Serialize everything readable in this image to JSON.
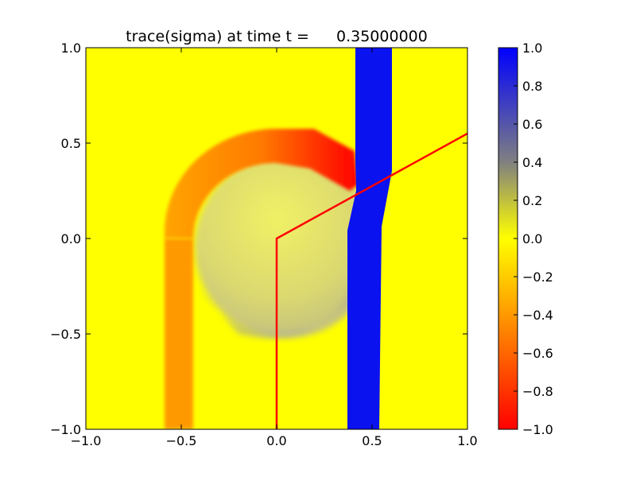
{
  "chart_data": {
    "type": "heatmap",
    "title": "trace(sigma) at time t =",
    "time_value": "0.35000000",
    "xlim": [
      -1.0,
      1.0
    ],
    "ylim": [
      -1.0,
      1.0
    ],
    "x_ticks": [
      -1.0,
      -0.5,
      0.0,
      0.5,
      1.0
    ],
    "x_tick_labels": [
      "−1.0",
      "−0.5",
      "0.0",
      "0.5",
      "1.0"
    ],
    "y_ticks": [
      -1.0,
      -0.5,
      0.0,
      0.5,
      1.0
    ],
    "y_tick_labels": [
      "−1.0",
      "−0.5",
      "0.0",
      "0.5",
      "1.0"
    ],
    "colorbar": {
      "range": [
        -1.0,
        1.0
      ],
      "ticks": [
        1.0,
        0.8,
        0.6,
        0.4,
        0.2,
        0.0,
        -0.2,
        -0.4,
        -0.6,
        -0.8,
        -1.0
      ],
      "tick_labels": [
        "1.0",
        "0.8",
        "0.6",
        "0.4",
        "0.2",
        "0.0",
        "−0.2",
        "−0.4",
        "−0.6",
        "−0.8",
        "−1.0"
      ],
      "stops": [
        {
          "value": -1.0,
          "color": "#ff0000"
        },
        {
          "value": 0.0,
          "color": "#ffff00"
        },
        {
          "value": 0.4,
          "color": "#808080"
        },
        {
          "value": 1.0,
          "color": "#0000ff"
        }
      ]
    },
    "background_value": 0.0,
    "features": {
      "vertical_band": {
        "value": 1.0,
        "x_range_top": [
          0.41,
          0.6
        ],
        "x_range_bottom": [
          0.37,
          0.54
        ]
      },
      "arc_band": {
        "value_range": [
          -0.3,
          -1.0
        ],
        "center": [
          0.0,
          0.0
        ],
        "radius_inner": 0.5,
        "radius_outer": 0.57
      },
      "left_leg": {
        "value": -0.4,
        "x_range": [
          -0.58,
          -0.45
        ]
      },
      "disk": {
        "center": [
          0.05,
          0.0
        ],
        "radius": 0.45,
        "value_range": [
          0.1,
          0.3
        ]
      }
    },
    "overlay_path": {
      "color": "#ff0000",
      "points": [
        [
          0.0,
          -1.0
        ],
        [
          0.0,
          0.0
        ],
        [
          1.0,
          0.55
        ]
      ]
    }
  }
}
